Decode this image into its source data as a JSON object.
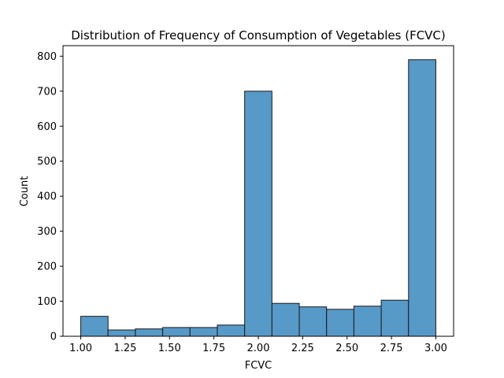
{
  "chart_data": {
    "type": "bar",
    "title": "Distribution of Frequency of Consumption of Vegetables (FCVC)",
    "xlabel": "FCVC",
    "ylabel": "Count",
    "bins": [
      {
        "x0": 1.0,
        "x1": 1.1538,
        "count": 57
      },
      {
        "x0": 1.1538,
        "x1": 1.3077,
        "count": 18
      },
      {
        "x0": 1.3077,
        "x1": 1.4615,
        "count": 21
      },
      {
        "x0": 1.4615,
        "x1": 1.6154,
        "count": 25
      },
      {
        "x0": 1.6154,
        "x1": 1.7692,
        "count": 25
      },
      {
        "x0": 1.7692,
        "x1": 1.9231,
        "count": 32
      },
      {
        "x0": 1.9231,
        "x1": 2.0769,
        "count": 700
      },
      {
        "x0": 2.0769,
        "x1": 2.2308,
        "count": 94
      },
      {
        "x0": 2.2308,
        "x1": 2.3846,
        "count": 84
      },
      {
        "x0": 2.3846,
        "x1": 2.5385,
        "count": 77
      },
      {
        "x0": 2.5385,
        "x1": 2.6923,
        "count": 86
      },
      {
        "x0": 2.6923,
        "x1": 2.8462,
        "count": 103
      },
      {
        "x0": 2.8462,
        "x1": 3.0,
        "count": 790
      }
    ],
    "xlim": [
      0.9,
      3.1
    ],
    "ylim": [
      0,
      830
    ],
    "xticks": [
      1.0,
      1.25,
      1.5,
      1.75,
      2.0,
      2.25,
      2.5,
      2.75,
      3.0
    ],
    "xtick_labels": [
      "1.00",
      "1.25",
      "1.50",
      "1.75",
      "2.00",
      "2.25",
      "2.50",
      "2.75",
      "3.00"
    ],
    "yticks": [
      0,
      100,
      200,
      300,
      400,
      500,
      600,
      700,
      800
    ],
    "ytick_labels": [
      "0",
      "100",
      "200",
      "300",
      "400",
      "500",
      "600",
      "700",
      "800"
    ],
    "grid": false,
    "legend": "none",
    "bar_color": "#5799c7",
    "edge_color": "#1a1a1a"
  }
}
